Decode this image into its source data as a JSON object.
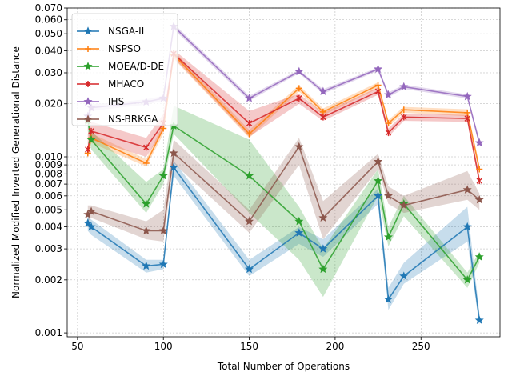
{
  "chart_data": {
    "type": "line",
    "title": "",
    "xlabel": "Total Number of Operations",
    "ylabel": "Normalized Modified Inverted Generational Distance",
    "xlim": [
      44,
      296
    ],
    "ylim": [
      0.00095,
      0.07
    ],
    "y_scale": "log",
    "grid": true,
    "legend_position": "top-left",
    "x_ticks": [
      50,
      100,
      150,
      200,
      250
    ],
    "y_ticks": [
      {
        "value": 0.001,
        "label": "0.001"
      },
      {
        "value": 0.002,
        "label": "0.002"
      },
      {
        "value": 0.003,
        "label": "0.003"
      },
      {
        "value": 0.004,
        "label": "0.004"
      },
      {
        "value": 0.005,
        "label": "0.005"
      },
      {
        "value": 0.006,
        "label": "0.006"
      },
      {
        "value": 0.007,
        "label": "0.007"
      },
      {
        "value": 0.008,
        "label": "0.008"
      },
      {
        "value": 0.009,
        "label": "0.009"
      },
      {
        "value": 0.01,
        "label": "0.010"
      },
      {
        "value": 0.02,
        "label": "0.020"
      },
      {
        "value": 0.03,
        "label": "0.030"
      },
      {
        "value": 0.04,
        "label": "0.040"
      },
      {
        "value": 0.05,
        "label": "0.050"
      },
      {
        "value": 0.06,
        "label": "0.060"
      },
      {
        "value": 0.07,
        "label": "0.070"
      }
    ],
    "series": [
      {
        "name": "NSGA-II",
        "color": "#1f77b4",
        "marker": "star",
        "x": [
          56,
          58,
          90,
          100,
          106,
          150,
          179,
          193,
          225,
          231,
          240,
          277,
          284
        ],
        "y": [
          0.0042,
          0.004,
          0.0024,
          0.00245,
          0.0087,
          0.0023,
          0.0037,
          0.003,
          0.006,
          0.00155,
          0.0021,
          0.004,
          0.00118
        ],
        "lower": [
          0.0038,
          0.0036,
          0.0022,
          0.0023,
          0.0078,
          0.0021,
          0.0032,
          0.0027,
          0.0054,
          0.00135,
          0.0019,
          0.0033,
          0.0011
        ],
        "upper": [
          0.0046,
          0.0044,
          0.0026,
          0.0026,
          0.0095,
          0.0026,
          0.004,
          0.0034,
          0.0066,
          0.0018,
          0.0025,
          0.0052,
          0.0013
        ]
      },
      {
        "name": "NSPSO",
        "color": "#ff7f0e",
        "marker": "plus",
        "x": [
          56,
          58,
          90,
          100,
          106,
          150,
          179,
          193,
          225,
          231,
          240,
          277,
          284
        ],
        "y": [
          0.0105,
          0.0128,
          0.0092,
          0.0145,
          0.038,
          0.0135,
          0.0245,
          0.018,
          0.0255,
          0.0155,
          0.0185,
          0.0178,
          0.0085
        ],
        "lower": [
          0.0097,
          0.012,
          0.0088,
          0.0135,
          0.036,
          0.0128,
          0.0235,
          0.0172,
          0.0245,
          0.0148,
          0.0178,
          0.017,
          0.008
        ],
        "upper": [
          0.0112,
          0.0136,
          0.0097,
          0.0155,
          0.04,
          0.0142,
          0.0255,
          0.0188,
          0.0265,
          0.0162,
          0.0192,
          0.0186,
          0.009
        ]
      },
      {
        "name": "MOEA/D-DE",
        "color": "#2ca02c",
        "marker": "star",
        "x": [
          56,
          58,
          90,
          100,
          106,
          150,
          179,
          193,
          225,
          231,
          240,
          277,
          284
        ],
        "y": [
          0.016,
          0.0125,
          0.0054,
          0.0078,
          0.015,
          0.0078,
          0.0043,
          0.0023,
          0.0073,
          0.0035,
          0.0054,
          0.002,
          0.0027
        ],
        "lower": [
          0.014,
          0.011,
          0.0048,
          0.007,
          0.0135,
          0.0048,
          0.0026,
          0.0016,
          0.006,
          0.0031,
          0.0046,
          0.0018,
          0.0025
        ],
        "upper": [
          0.0175,
          0.014,
          0.0072,
          0.0085,
          0.0195,
          0.0125,
          0.0052,
          0.003,
          0.0085,
          0.004,
          0.006,
          0.0022,
          0.0029
        ]
      },
      {
        "name": "MHACO",
        "color": "#d62728",
        "marker": "x",
        "x": [
          56,
          58,
          90,
          100,
          106,
          150,
          179,
          193,
          225,
          231,
          240,
          277,
          284
        ],
        "y": [
          0.011,
          0.014,
          0.0113,
          0.0155,
          0.0385,
          0.0155,
          0.0215,
          0.0168,
          0.0235,
          0.0137,
          0.0168,
          0.0165,
          0.0073
        ],
        "lower": [
          0.01,
          0.0125,
          0.01,
          0.014,
          0.0365,
          0.013,
          0.02,
          0.016,
          0.0225,
          0.013,
          0.016,
          0.0158,
          0.0069
        ],
        "upper": [
          0.0135,
          0.0158,
          0.0128,
          0.0175,
          0.0405,
          0.0182,
          0.0228,
          0.0178,
          0.0248,
          0.0145,
          0.0176,
          0.0173,
          0.0078
        ]
      },
      {
        "name": "IHS",
        "color": "#9467bd",
        "marker": "star",
        "x": [
          56,
          58,
          90,
          100,
          106,
          150,
          179,
          193,
          225,
          231,
          240,
          277,
          284
        ],
        "y": [
          0.017,
          0.019,
          0.0205,
          0.0215,
          0.055,
          0.0215,
          0.0305,
          0.0235,
          0.0315,
          0.0225,
          0.025,
          0.022,
          0.012
        ],
        "lower": [
          0.0163,
          0.0182,
          0.0198,
          0.0208,
          0.053,
          0.0208,
          0.0298,
          0.0228,
          0.0308,
          0.0218,
          0.0243,
          0.0214,
          0.0115
        ],
        "upper": [
          0.0177,
          0.0198,
          0.0212,
          0.0222,
          0.057,
          0.0222,
          0.0312,
          0.0242,
          0.0322,
          0.0232,
          0.0257,
          0.0226,
          0.0125
        ]
      },
      {
        "name": "NS-BRKGA",
        "color": "#8c564b",
        "marker": "star",
        "x": [
          56,
          58,
          90,
          100,
          106,
          150,
          179,
          193,
          225,
          231,
          240,
          277,
          284
        ],
        "y": [
          0.0047,
          0.0049,
          0.0038,
          0.0038,
          0.0105,
          0.0043,
          0.0114,
          0.0045,
          0.0094,
          0.006,
          0.0053,
          0.0065,
          0.0057
        ],
        "lower": [
          0.0043,
          0.0045,
          0.0034,
          0.0033,
          0.0092,
          0.0037,
          0.009,
          0.0034,
          0.0085,
          0.0054,
          0.0048,
          0.0057,
          0.005
        ],
        "upper": [
          0.0053,
          0.0053,
          0.0043,
          0.005,
          0.0125,
          0.005,
          0.0128,
          0.0056,
          0.0104,
          0.0068,
          0.006,
          0.0083,
          0.0062
        ]
      }
    ]
  }
}
